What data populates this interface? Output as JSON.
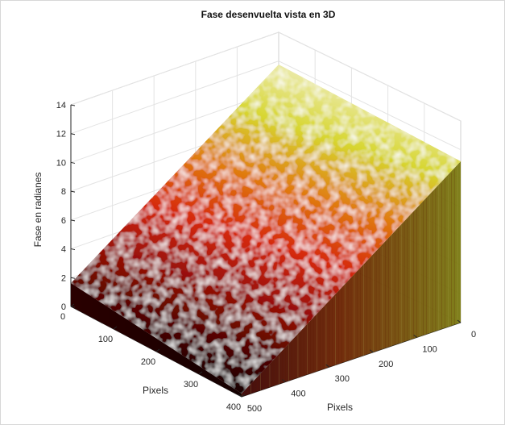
{
  "chart_data": {
    "type": "surface",
    "title": "Fase desenvuelta vista en 3D",
    "xlabel": "Pixels",
    "ylabel": "Pixels",
    "zlabel": "Fase en radianes",
    "x_ticks": [
      "0",
      "100",
      "200",
      "300",
      "400",
      "500"
    ],
    "y_ticks": [
      "0",
      "100",
      "200",
      "300",
      "400"
    ],
    "z_ticks": [
      "0",
      "2",
      "4",
      "6",
      "8",
      "10",
      "12",
      "14"
    ],
    "xlim": [
      0,
      500
    ],
    "ylim": [
      0,
      400
    ],
    "zlim": [
      0,
      14
    ],
    "grid": true,
    "colormap": [
      "#1a0000",
      "#8b0000",
      "#ff3300",
      "#ff9900",
      "#ffff33",
      "#ffffcc"
    ],
    "surface": {
      "phase_at_y0": 1.5,
      "phase_at_y400": 13,
      "noise_amplitude": 0.6,
      "description_values": [
        {
          "y": 0,
          "z": 1.5
        },
        {
          "y": 100,
          "z": 4.4
        },
        {
          "y": 200,
          "z": 7.3
        },
        {
          "y": 300,
          "z": 10.1
        },
        {
          "y": 400,
          "z": 13.0
        }
      ]
    }
  }
}
